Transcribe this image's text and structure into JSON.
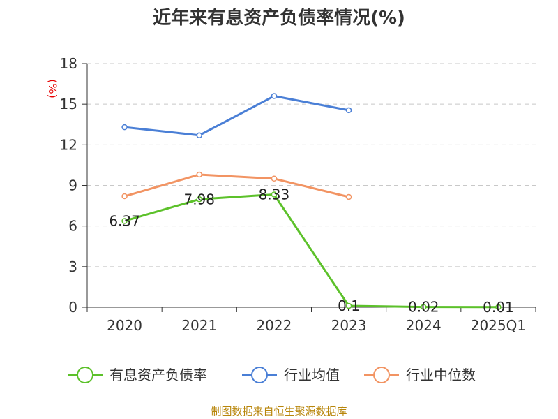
{
  "chart_data": {
    "type": "line",
    "title": "近年来有息资产负债率情况(%)",
    "ylabel": "(%)",
    "categories": [
      "2020",
      "2021",
      "2022",
      "2023",
      "2024",
      "2025Q1"
    ],
    "yticks": [
      0,
      3,
      6,
      9,
      12,
      15,
      18
    ],
    "ylim": [
      0,
      18
    ],
    "grid": true,
    "legend_position": "bottom",
    "series": [
      {
        "name": "有息资产负债率",
        "color": "#5cc12a",
        "values": [
          6.37,
          7.98,
          8.33,
          0.1,
          0.02,
          0.01
        ],
        "labels": [
          "6.37",
          "7.98",
          "8.33",
          "0.1",
          "0.02",
          "0.01"
        ]
      },
      {
        "name": "行业均值",
        "color": "#4a7fd6",
        "values": [
          13.3,
          12.7,
          15.6,
          14.55,
          null,
          null
        ]
      },
      {
        "name": "行业中位数",
        "color": "#f29463",
        "values": [
          8.2,
          9.8,
          9.5,
          8.15,
          null,
          null
        ]
      }
    ]
  },
  "source_note": "制图数据来自恒生聚源数据库"
}
